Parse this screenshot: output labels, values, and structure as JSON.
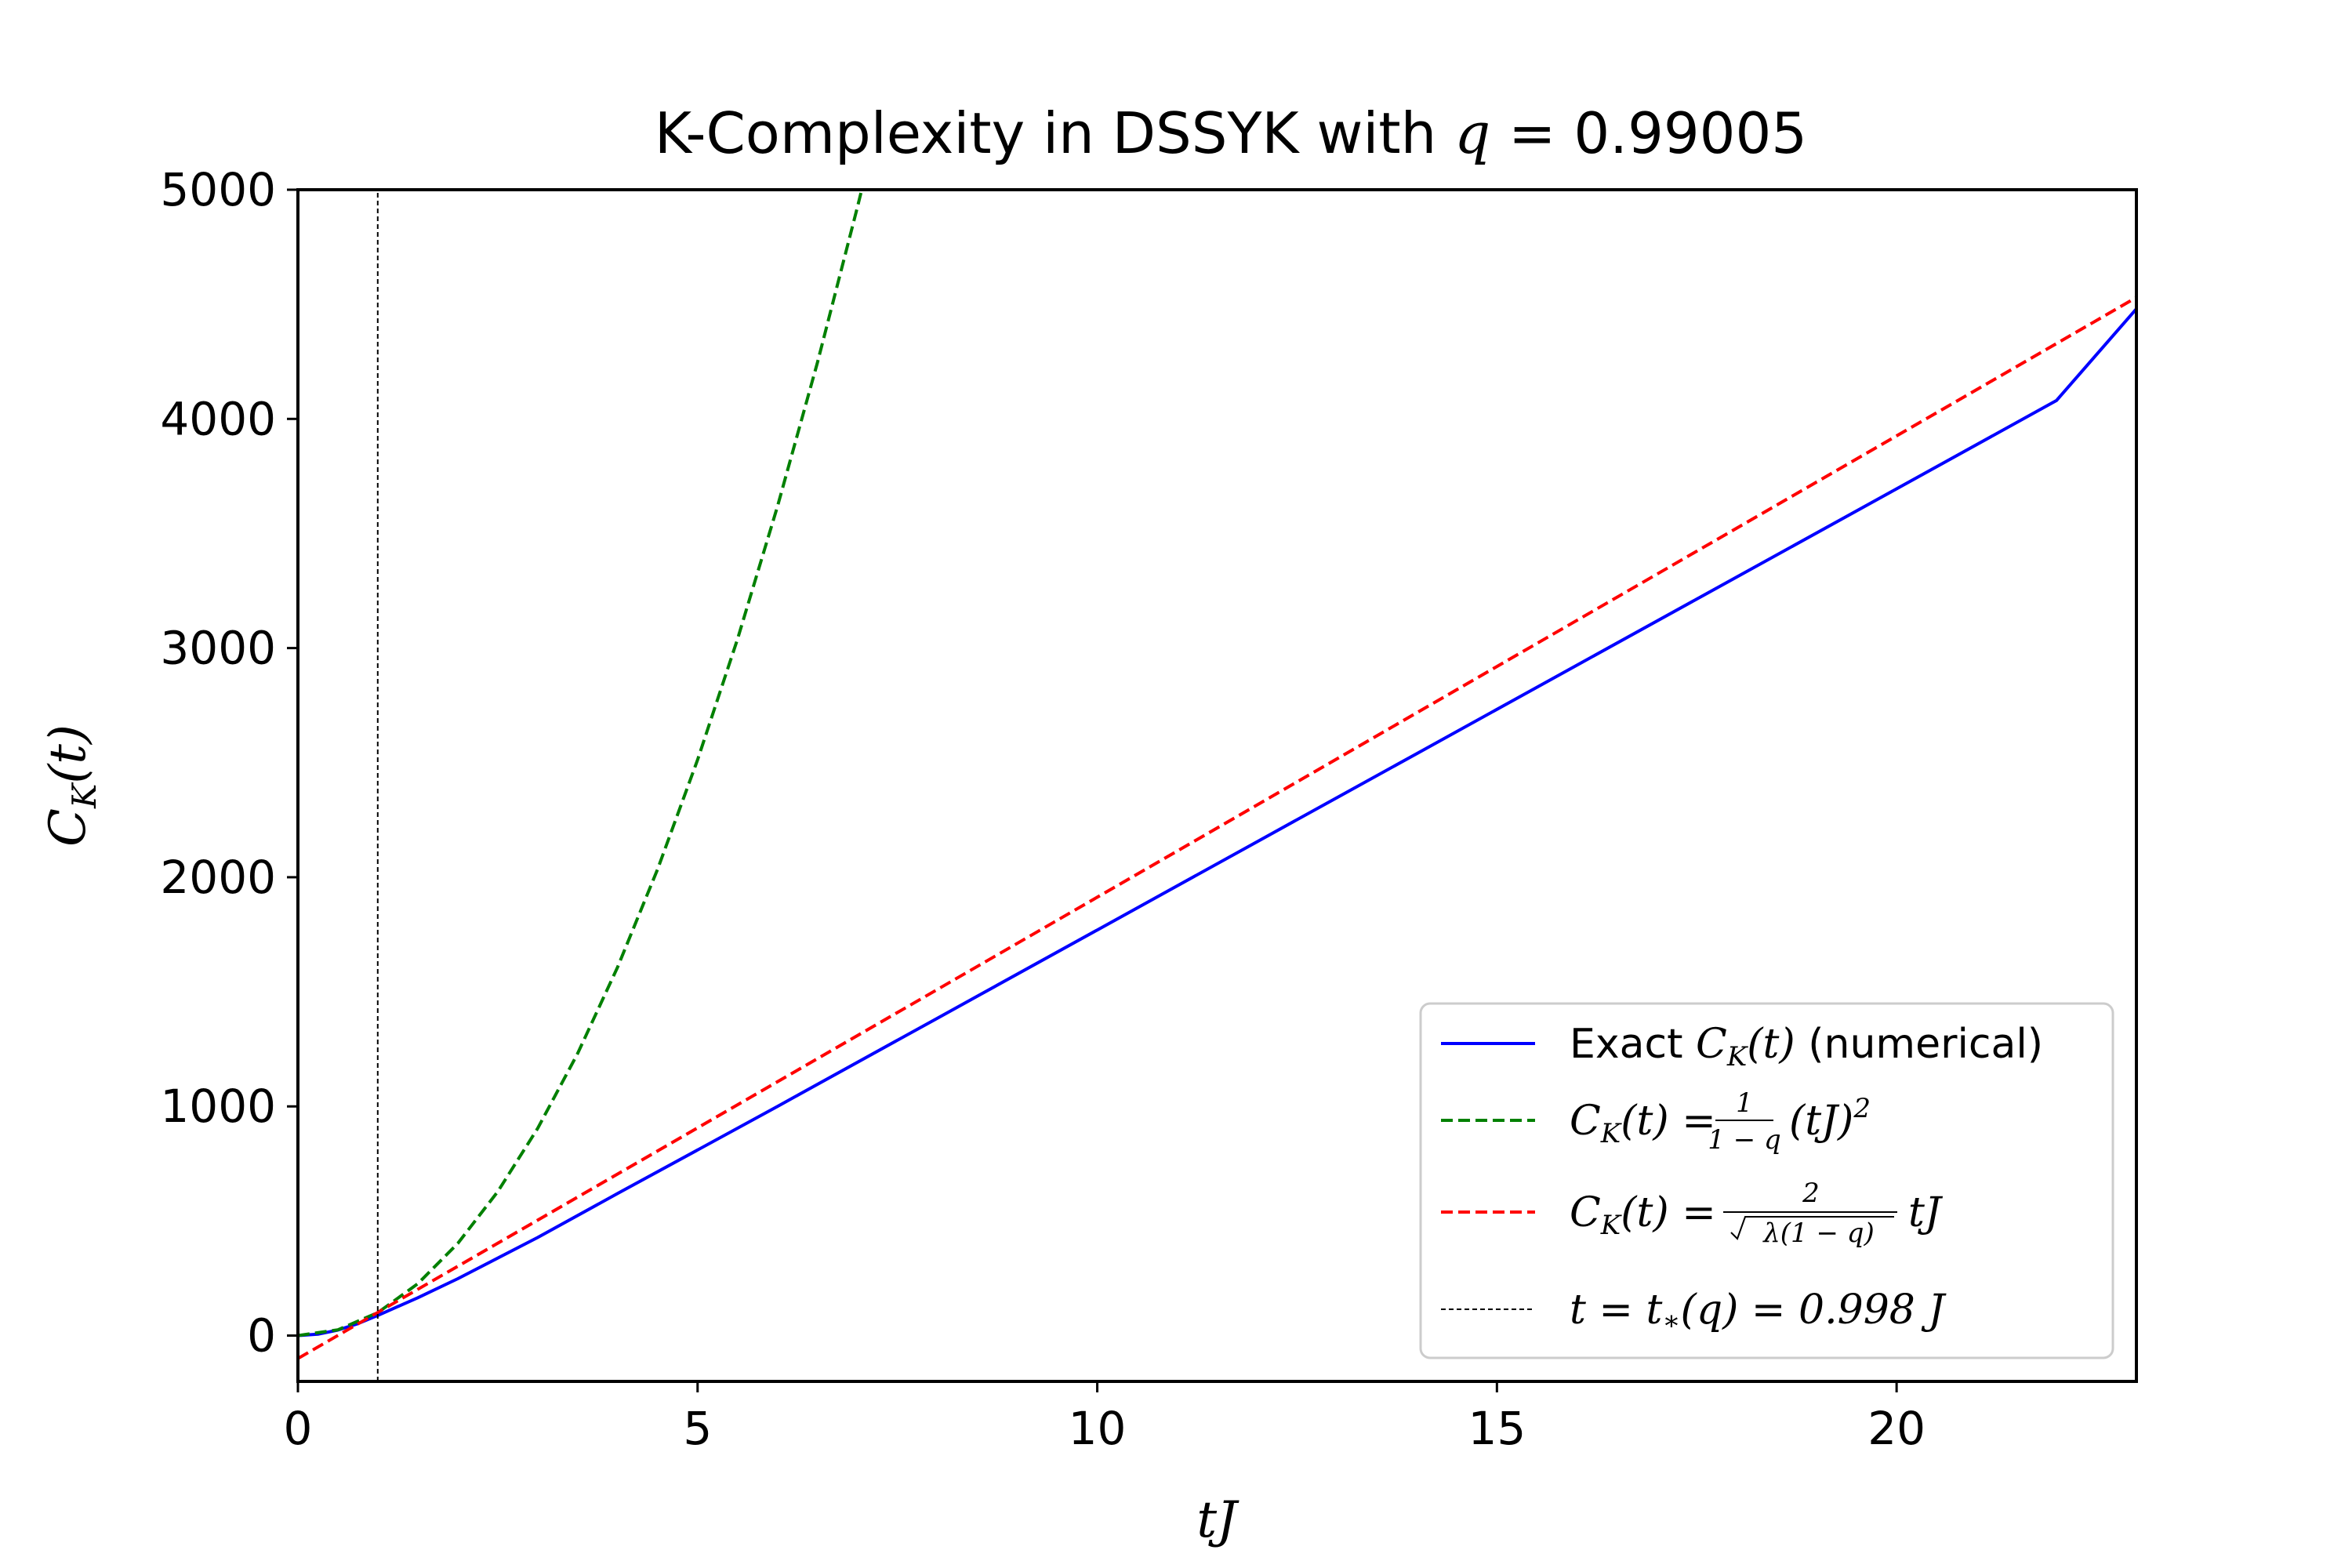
{
  "chart_data": {
    "type": "line",
    "title": "K-Complexity in DSSYK with q = 0.99005",
    "xlabel": "tJ",
    "ylabel": "C_K(t)",
    "xlim": [
      0,
      23
    ],
    "ylim": [
      -200,
      5000
    ],
    "q": 0.99005,
    "t_star": 0.998,
    "x_ticks": [
      0,
      5,
      10,
      15,
      20
    ],
    "y_ticks": [
      0,
      1000,
      2000,
      3000,
      4000,
      5000
    ],
    "grid": false,
    "legend_position": "lower-right",
    "series": [
      {
        "name": "Exact C_K(t) (numerical)",
        "style": "solid",
        "color": "#0000ff",
        "x": [
          0,
          0.25,
          0.5,
          0.75,
          1.0,
          1.5,
          2,
          3,
          4,
          5,
          6,
          8,
          10,
          12,
          14,
          16,
          18,
          20,
          22,
          23
        ],
        "y": [
          0,
          6,
          24,
          52,
          88,
          165,
          248,
          428,
          620,
          810,
          1000,
          1385,
          1770,
          2155,
          2540,
          2925,
          3310,
          3695,
          4080,
          4480
        ]
      },
      {
        "name": "C_K(t) = 1/(1−q) (tJ)^2",
        "style": "dashed",
        "color": "#008000",
        "x": [
          0,
          0.5,
          1,
          1.5,
          2,
          2.5,
          3,
          3.5,
          4,
          4.5,
          5,
          5.5,
          6,
          6.5,
          7,
          7.05
        ],
        "y": [
          0,
          25.1,
          100.5,
          226.1,
          402.0,
          628.1,
          904.5,
          1231.1,
          1608.0,
          2035.2,
          2512.6,
          3040.2,
          3618.1,
          4246.2,
          4924.6,
          4995.2
        ]
      },
      {
        "name": "C_K(t) = 2/√(λ(1−q)) tJ",
        "style": "dashed",
        "color": "#ff0000",
        "x": [
          0,
          23
        ],
        "y": [
          -100,
          4530
        ]
      },
      {
        "name": "t = t*(q) = 0.998 J",
        "style": "dashed-thin",
        "color": "#000000",
        "x": [
          0.998,
          0.998
        ],
        "y": [
          -200,
          5000
        ]
      }
    ]
  },
  "title": {
    "prefix": "K-Complexity in DSSYK with ",
    "var": "q",
    "eq": " = 0.99005"
  },
  "axes": {
    "xlabel": "tJ",
    "ylabel_c": "C",
    "ylabel_sub": "K",
    "ylabel_t": "(t)",
    "x_tick_labels": [
      "0",
      "5",
      "10",
      "15",
      "20"
    ],
    "y_tick_labels": [
      "0",
      "1000",
      "2000",
      "3000",
      "4000",
      "5000"
    ]
  },
  "legend": {
    "exact_prefix": "Exact ",
    "exact_math": "C",
    "exact_sub": "K",
    "exact_t": "(t)",
    "exact_suffix": " (numerical)",
    "green_lhs": "C",
    "green_sub": "K",
    "green_mid": "(t) =",
    "green_num": "1",
    "green_den": "1 − q",
    "green_rhs": "(tJ)",
    "green_exp": "2",
    "red_lhs": "C",
    "red_sub": "K",
    "red_mid": "(t) =",
    "red_num": "2",
    "red_den": "λ(1 − q)",
    "red_rhs": "tJ",
    "vline_text": "t = t",
    "vline_star": "∗",
    "vline_rest": "(q) = 0.998 J"
  },
  "colors": {
    "exact": "#0000ff",
    "green": "#008000",
    "red": "#ff0000",
    "vline": "#000000"
  }
}
